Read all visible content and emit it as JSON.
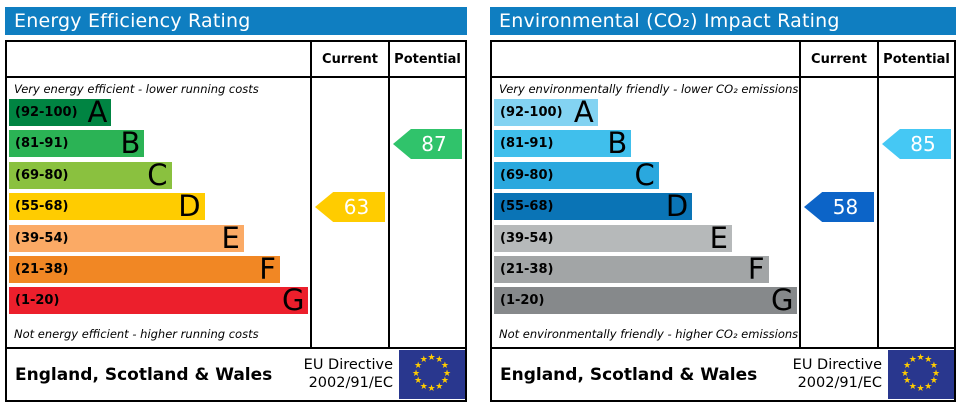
{
  "panels": [
    {
      "id": "energy-efficiency",
      "title": "Energy Efficiency Rating",
      "header_bg": "#0f7ec1",
      "columns": {
        "current": "Current",
        "potential": "Potential"
      },
      "top_caption": "Very energy efficient - lower running costs",
      "bottom_caption": "Not energy efficient - higher running costs",
      "bands": [
        {
          "range": "(92-100)",
          "letter": "A",
          "color": "#008442",
          "width_pct": 34
        },
        {
          "range": "(81-91)",
          "letter": "B",
          "color": "#2bb355",
          "width_pct": 45
        },
        {
          "range": "(69-80)",
          "letter": "C",
          "color": "#8ac13f",
          "width_pct": 54
        },
        {
          "range": "(55-68)",
          "letter": "D",
          "color": "#ffcc00",
          "width_pct": 65
        },
        {
          "range": "(39-54)",
          "letter": "E",
          "color": "#fbaa65",
          "width_pct": 78
        },
        {
          "range": "(21-38)",
          "letter": "F",
          "color": "#f18724",
          "width_pct": 90
        },
        {
          "range": "(1-20)",
          "letter": "G",
          "color": "#ec1f2c",
          "width_pct": 99.5
        }
      ],
      "current": {
        "value": "63",
        "band_index": 3,
        "color": "#ffcc00"
      },
      "potential": {
        "value": "87",
        "band_index": 1,
        "color": "#30c36b"
      },
      "footer": {
        "region": "England, Scotland & Wales",
        "directive_line1": "EU Directive",
        "directive_line2": "2002/91/EC"
      }
    },
    {
      "id": "environmental-impact",
      "title": "Environmental (CO₂) Impact Rating",
      "header_bg": "#0f7ec1",
      "columns": {
        "current": "Current",
        "potential": "Potential"
      },
      "top_caption": "Very environmentally friendly - lower CO₂ emissions",
      "bottom_caption": "Not environmentally friendly - higher CO₂ emissions",
      "bands": [
        {
          "range": "(92-100)",
          "letter": "A",
          "color": "#83d3f2",
          "width_pct": 34
        },
        {
          "range": "(81-91)",
          "letter": "B",
          "color": "#40bfec",
          "width_pct": 45
        },
        {
          "range": "(69-80)",
          "letter": "C",
          "color": "#2aa8de",
          "width_pct": 54
        },
        {
          "range": "(55-68)",
          "letter": "D",
          "color": "#0a74b6",
          "width_pct": 65
        },
        {
          "range": "(39-54)",
          "letter": "E",
          "color": "#b6b9ba",
          "width_pct": 78
        },
        {
          "range": "(21-38)",
          "letter": "F",
          "color": "#a2a5a6",
          "width_pct": 90
        },
        {
          "range": "(1-20)",
          "letter": "G",
          "color": "#86898b",
          "width_pct": 99.5
        }
      ],
      "current": {
        "value": "58",
        "band_index": 3,
        "color": "#0c64c8"
      },
      "potential": {
        "value": "85",
        "band_index": 1,
        "color": "#45c8f4"
      },
      "footer": {
        "region": "England, Scotland & Wales",
        "directive_line1": "EU Directive",
        "directive_line2": "2002/91/EC"
      }
    }
  ],
  "chart_data": [
    {
      "type": "bar",
      "title": "Energy Efficiency Rating",
      "categories": [
        "A (92-100)",
        "B (81-91)",
        "C (69-80)",
        "D (55-68)",
        "E (39-54)",
        "F (21-38)",
        "G (1-20)"
      ],
      "scale_range": [
        1,
        100
      ],
      "current_value": 63,
      "current_band": "D",
      "potential_value": 87,
      "potential_band": "B",
      "column_headers": [
        "Current",
        "Potential"
      ],
      "note_top": "Very energy efficient - lower running costs",
      "note_bottom": "Not energy efficient - higher running costs",
      "region": "England, Scotland & Wales",
      "directive": "EU Directive 2002/91/EC"
    },
    {
      "type": "bar",
      "title": "Environmental (CO₂) Impact Rating",
      "categories": [
        "A (92-100)",
        "B (81-91)",
        "C (69-80)",
        "D (55-68)",
        "E (39-54)",
        "F (21-38)",
        "G (1-20)"
      ],
      "scale_range": [
        1,
        100
      ],
      "current_value": 58,
      "current_band": "D",
      "potential_value": 85,
      "potential_band": "B",
      "column_headers": [
        "Current",
        "Potential"
      ],
      "note_top": "Very environmentally friendly - lower CO₂ emissions",
      "note_bottom": "Not environmentally friendly - higher CO₂ emissions",
      "region": "England, Scotland & Wales",
      "directive": "EU Directive 2002/91/EC"
    }
  ]
}
